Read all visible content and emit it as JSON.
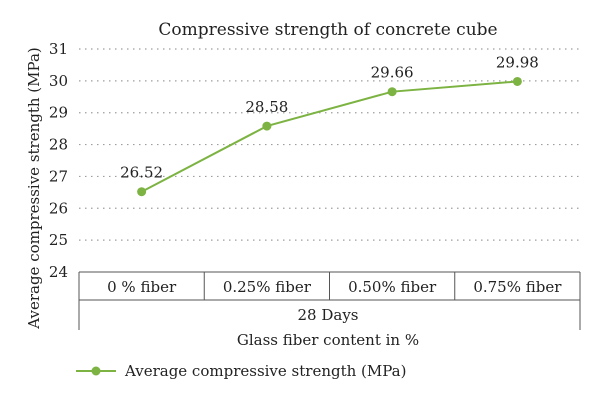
{
  "chart_data": {
    "type": "line",
    "title": "Compressive strength of concrete cube",
    "ylabel": "Average compressive strength (MPa)",
    "xlabel": "Glass fiber content in %",
    "group_label": "28 Days",
    "categories": [
      "0 % fiber",
      "0.25% fiber",
      "0.50% fiber",
      "0.75% fiber"
    ],
    "series": [
      {
        "name": "Average compressive strength (MPa)",
        "values": [
          26.52,
          28.58,
          29.66,
          29.98
        ],
        "labels": [
          "26.52",
          "28.58",
          "29.66",
          "29.98"
        ]
      }
    ],
    "ylim": [
      24,
      31
    ],
    "yticks": [
      "24",
      "25",
      "26",
      "27",
      "28",
      "29",
      "30",
      "31"
    ],
    "grid": true,
    "legend": "bottom-left",
    "colors": {
      "series": "#7cb342",
      "grid": "#9e9e9e",
      "axis": "#555555"
    }
  }
}
